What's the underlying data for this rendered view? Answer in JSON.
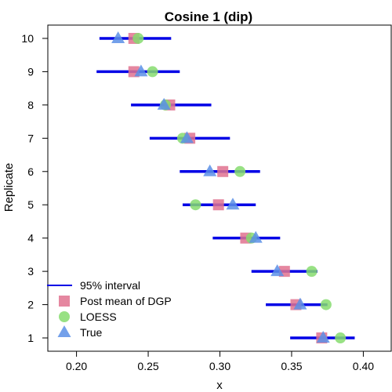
{
  "chart_data": {
    "type": "scatter",
    "title": "Cosine 1 (dip)",
    "xlabel": "x",
    "ylabel": "Replicate",
    "xlim": [
      0.18,
      0.42
    ],
    "ylim": [
      0.6,
      10.4
    ],
    "xticks": [
      "0.20",
      "0.25",
      "0.30",
      "0.35",
      "0.40"
    ],
    "xtick_values": [
      0.2,
      0.25,
      0.3,
      0.35,
      0.4
    ],
    "yticks": [
      "1",
      "2",
      "3",
      "4",
      "5",
      "6",
      "7",
      "8",
      "9",
      "10"
    ],
    "ytick_values": [
      1,
      2,
      3,
      4,
      5,
      6,
      7,
      8,
      9,
      10
    ],
    "grid": false,
    "legend_position": "bottom-left",
    "colors": {
      "interval": "#0000e6",
      "post_mean": "#e0728f",
      "loess": "#86dc6e",
      "true": "#5b8fe6"
    },
    "legend": [
      {
        "label": "95% interval",
        "marker": "line",
        "color": "#0000e6"
      },
      {
        "label": "Post mean of DGP",
        "marker": "square",
        "color": "#e0728f"
      },
      {
        "label": "LOESS",
        "marker": "circle",
        "color": "#86dc6e"
      },
      {
        "label": "True",
        "marker": "triangle",
        "color": "#5b8fe6"
      }
    ],
    "series": [
      {
        "name": "95% interval",
        "marker": "line",
        "points": [
          {
            "replicate": 1,
            "low": 0.349,
            "high": 0.394
          },
          {
            "replicate": 2,
            "low": 0.332,
            "high": 0.375
          },
          {
            "replicate": 3,
            "low": 0.322,
            "high": 0.368
          },
          {
            "replicate": 4,
            "low": 0.295,
            "high": 0.342
          },
          {
            "replicate": 5,
            "low": 0.274,
            "high": 0.325
          },
          {
            "replicate": 6,
            "low": 0.272,
            "high": 0.328
          },
          {
            "replicate": 7,
            "low": 0.251,
            "high": 0.307
          },
          {
            "replicate": 8,
            "low": 0.238,
            "high": 0.294
          },
          {
            "replicate": 9,
            "low": 0.214,
            "high": 0.272
          },
          {
            "replicate": 10,
            "low": 0.216,
            "high": 0.266
          }
        ]
      },
      {
        "name": "Post mean of DGP",
        "marker": "square",
        "points": [
          {
            "replicate": 1,
            "x": 0.371
          },
          {
            "replicate": 2,
            "x": 0.353
          },
          {
            "replicate": 3,
            "x": 0.345
          },
          {
            "replicate": 4,
            "x": 0.318
          },
          {
            "replicate": 5,
            "x": 0.299
          },
          {
            "replicate": 6,
            "x": 0.302
          },
          {
            "replicate": 7,
            "x": 0.279
          },
          {
            "replicate": 8,
            "x": 0.265
          },
          {
            "replicate": 9,
            "x": 0.24
          },
          {
            "replicate": 10,
            "x": 0.24
          }
        ]
      },
      {
        "name": "LOESS",
        "marker": "circle",
        "points": [
          {
            "replicate": 1,
            "x": 0.384
          },
          {
            "replicate": 2,
            "x": 0.374
          },
          {
            "replicate": 3,
            "x": 0.364
          },
          {
            "replicate": 4,
            "x": 0.322
          },
          {
            "replicate": 5,
            "x": 0.283
          },
          {
            "replicate": 6,
            "x": 0.314
          },
          {
            "replicate": 7,
            "x": 0.274
          },
          {
            "replicate": 8,
            "x": 0.262
          },
          {
            "replicate": 9,
            "x": 0.253
          },
          {
            "replicate": 10,
            "x": 0.243
          }
        ]
      },
      {
        "name": "True",
        "marker": "triangle",
        "points": [
          {
            "replicate": 1,
            "x": 0.372
          },
          {
            "replicate": 2,
            "x": 0.356
          },
          {
            "replicate": 3,
            "x": 0.34
          },
          {
            "replicate": 4,
            "x": 0.325
          },
          {
            "replicate": 5,
            "x": 0.309
          },
          {
            "replicate": 6,
            "x": 0.293
          },
          {
            "replicate": 7,
            "x": 0.277
          },
          {
            "replicate": 8,
            "x": 0.261
          },
          {
            "replicate": 9,
            "x": 0.245
          },
          {
            "replicate": 10,
            "x": 0.229
          }
        ]
      }
    ]
  }
}
